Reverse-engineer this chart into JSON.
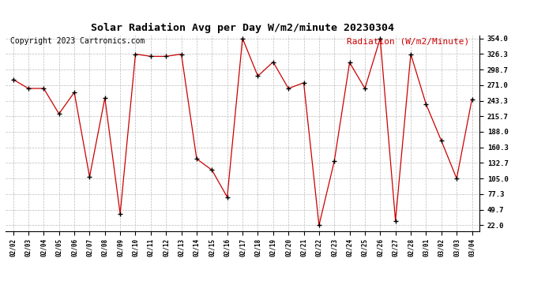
{
  "title": "Solar Radiation Avg per Day W/m2/minute 20230304",
  "copyright": "Copyright 2023 Cartronics.com",
  "legend_label": "Radiation (W/m2/Minute)",
  "dates": [
    "02/02",
    "02/03",
    "02/04",
    "02/05",
    "02/06",
    "02/07",
    "02/08",
    "02/09",
    "02/10",
    "02/11",
    "02/12",
    "02/13",
    "02/14",
    "02/15",
    "02/16",
    "02/17",
    "02/18",
    "02/19",
    "02/20",
    "02/21",
    "02/22",
    "02/23",
    "02/24",
    "02/25",
    "02/26",
    "02/27",
    "02/28",
    "03/01",
    "03/02",
    "03/03",
    "03/04"
  ],
  "values": [
    281.0,
    265.0,
    265.0,
    220.0,
    258.0,
    108.0,
    248.0,
    42.0,
    326.0,
    322.0,
    322.0,
    326.0,
    140.0,
    120.0,
    72.0,
    354.0,
    287.0,
    312.0,
    265.0,
    275.0,
    22.0,
    136.0,
    311.0,
    265.0,
    354.0,
    30.0,
    326.0,
    237.0,
    172.0,
    105.0,
    246.0
  ],
  "line_color": "#cc0000",
  "marker_color": "#000000",
  "background_color": "#ffffff",
  "grid_color": "#bbbbbb",
  "title_fontsize": 9.5,
  "copyright_fontsize": 7,
  "legend_fontsize": 8,
  "ytick_labels": [
    "22.0",
    "49.7",
    "77.3",
    "105.0",
    "132.7",
    "160.3",
    "188.0",
    "215.7",
    "243.3",
    "271.0",
    "298.7",
    "326.3",
    "354.0"
  ],
  "ytick_values": [
    22.0,
    49.7,
    77.3,
    105.0,
    132.7,
    160.3,
    188.0,
    215.7,
    243.3,
    271.0,
    298.7,
    326.3,
    354.0
  ],
  "ymin": 22.0,
  "ymax": 354.0
}
